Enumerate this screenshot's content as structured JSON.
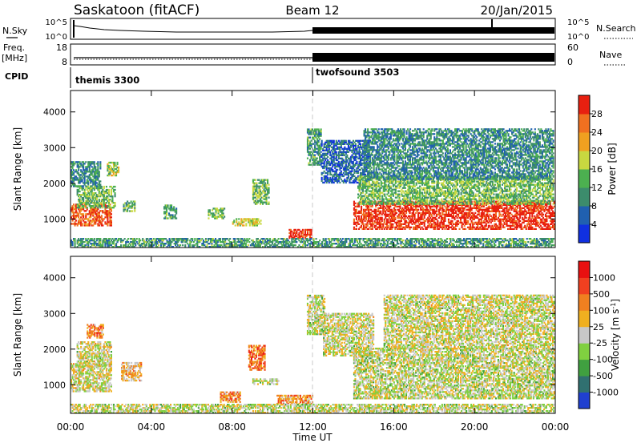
{
  "header": {
    "title": "Saskatoon (fitACF)",
    "beam": "Beam 12",
    "date": "20/Jan/2015"
  },
  "sky_panel": {
    "left_label": "N.Sky",
    "right_label": "N.Search",
    "left_ticks": [
      "10^5",
      "10^0"
    ],
    "right_ticks": [
      "10^5",
      "10^0"
    ]
  },
  "freq_panel": {
    "left_label_top": "Freq.",
    "left_label_bottom": "[MHz]",
    "right_label": "Nave",
    "left_ticks": [
      "18",
      "8"
    ],
    "right_ticks": [
      "60",
      "0"
    ]
  },
  "cpid": {
    "label": "CPID",
    "segments": [
      {
        "name": "themis 3300",
        "start_hour": 0
      },
      {
        "name": "twofsound 3503",
        "start_hour": 12
      }
    ]
  },
  "x_axis": {
    "label": "Time UT",
    "ticks": [
      "00:00",
      "04:00",
      "08:00",
      "12:00",
      "16:00",
      "20:00",
      "00:00"
    ],
    "range_hours": [
      0,
      24
    ]
  },
  "chart_data": [
    {
      "type": "heatmap",
      "name": "power",
      "ylabel": "Slant Range [km]",
      "yticks": [
        "1000",
        "2000",
        "3000",
        "4000"
      ],
      "ylim": [
        200,
        4600
      ],
      "colorbar_label": "Power [dB]",
      "colorbar_ticks": [
        "4",
        "8",
        "12",
        "16",
        "20",
        "24",
        "28"
      ],
      "colorbar_colors": [
        "#1030e0",
        "#2060b0",
        "#3c8c6c",
        "#4cb050",
        "#c8d840",
        "#f0a020",
        "#f07020",
        "#e82010"
      ],
      "regions": [
        {
          "t0": 0.0,
          "t1": 2.0,
          "r0": 800,
          "r1": 1400,
          "level": 0.85
        },
        {
          "t0": 0.3,
          "t1": 2.2,
          "r0": 1300,
          "r1": 1900,
          "level": 0.45
        },
        {
          "t0": 0.0,
          "t1": 1.5,
          "r0": 1900,
          "r1": 2600,
          "level": 0.3
        },
        {
          "t0": 1.8,
          "t1": 2.4,
          "r0": 2200,
          "r1": 2600,
          "level": 0.5
        },
        {
          "t0": 2.6,
          "t1": 3.2,
          "r0": 1200,
          "r1": 1500,
          "level": 0.4
        },
        {
          "t0": 4.6,
          "t1": 5.2,
          "r0": 1000,
          "r1": 1400,
          "level": 0.35
        },
        {
          "t0": 6.8,
          "t1": 7.6,
          "r0": 1000,
          "r1": 1300,
          "level": 0.45
        },
        {
          "t0": 8.0,
          "t1": 9.4,
          "r0": 800,
          "r1": 1000,
          "level": 0.55
        },
        {
          "t0": 9.0,
          "t1": 9.8,
          "r0": 1400,
          "r1": 2100,
          "level": 0.45
        },
        {
          "t0": 10.8,
          "t1": 11.9,
          "r0": 450,
          "r1": 700,
          "level": 0.95
        },
        {
          "t0": 11.7,
          "t1": 12.4,
          "r0": 2500,
          "r1": 3500,
          "level": 0.35
        },
        {
          "t0": 12.4,
          "t1": 14.8,
          "r0": 2000,
          "r1": 3200,
          "level": 0.2
        },
        {
          "t0": 14.0,
          "t1": 23.9,
          "r0": 700,
          "r1": 1500,
          "level": 0.95
        },
        {
          "t0": 14.2,
          "t1": 23.9,
          "r0": 1400,
          "r1": 2200,
          "level": 0.45
        },
        {
          "t0": 14.5,
          "t1": 23.9,
          "r0": 2100,
          "r1": 3500,
          "level": 0.3
        },
        {
          "t0": 0.0,
          "t1": 23.9,
          "r0": 200,
          "r1": 450,
          "level": 0.35
        }
      ]
    },
    {
      "type": "heatmap",
      "name": "velocity",
      "ylabel": "Slant Range [km]",
      "yticks": [
        "1000",
        "2000",
        "3000",
        "4000"
      ],
      "ylim": [
        200,
        4600
      ],
      "colorbar_label": "Velocity [m s^-1]",
      "colorbar_ticks": [
        "1000",
        "500",
        "100",
        "25",
        "-25",
        "-100",
        "-500",
        "-1000"
      ],
      "colorbar_colors": [
        "#2040d0",
        "#307070",
        "#40a040",
        "#80d040",
        "#c8c8c8",
        "#f0b020",
        "#f08020",
        "#f04020",
        "#e81010"
      ],
      "regions": [
        {
          "t0": 0.0,
          "t1": 2.0,
          "r0": 800,
          "r1": 1600,
          "level": 0.52
        },
        {
          "t0": 0.3,
          "t1": 2.0,
          "r0": 1500,
          "r1": 2200,
          "level": 0.5
        },
        {
          "t0": 0.8,
          "t1": 1.6,
          "r0": 2300,
          "r1": 2700,
          "level": 0.72
        },
        {
          "t0": 2.5,
          "t1": 3.5,
          "r0": 1100,
          "r1": 1600,
          "level": 0.62
        },
        {
          "t0": 7.4,
          "t1": 8.4,
          "r0": 500,
          "r1": 800,
          "level": 0.7
        },
        {
          "t0": 8.8,
          "t1": 9.6,
          "r0": 1400,
          "r1": 2100,
          "level": 0.75
        },
        {
          "t0": 9.0,
          "t1": 10.3,
          "r0": 1000,
          "r1": 1150,
          "level": 0.48
        },
        {
          "t0": 10.2,
          "t1": 12.0,
          "r0": 450,
          "r1": 700,
          "level": 0.68
        },
        {
          "t0": 11.7,
          "t1": 12.6,
          "r0": 2400,
          "r1": 3500,
          "level": 0.48
        },
        {
          "t0": 12.5,
          "t1": 15.0,
          "r0": 1800,
          "r1": 3000,
          "level": 0.5
        },
        {
          "t0": 14.0,
          "t1": 23.9,
          "r0": 600,
          "r1": 2000,
          "level": 0.48
        },
        {
          "t0": 15.5,
          "t1": 23.9,
          "r0": 2000,
          "r1": 3500,
          "level": 0.5
        },
        {
          "t0": 0.0,
          "t1": 23.9,
          "r0": 200,
          "r1": 450,
          "level": 0.48
        }
      ]
    }
  ]
}
